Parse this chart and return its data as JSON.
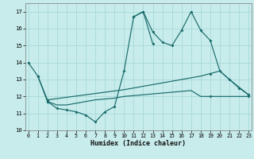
{
  "xlabel": "Humidex (Indice chaleur)",
  "bg_color": "#c8ecec",
  "line_color": "#1a6b6b",
  "grid_color": "#a8d8d8",
  "xlim": [
    -0.3,
    23.3
  ],
  "ylim": [
    10,
    17.5
  ],
  "xtick_vals": [
    0,
    1,
    2,
    3,
    4,
    5,
    6,
    7,
    8,
    9,
    10,
    11,
    12,
    13,
    14,
    15,
    16,
    17,
    18,
    19,
    20,
    21,
    22,
    23
  ],
  "ytick_vals": [
    10,
    11,
    12,
    13,
    14,
    15,
    16,
    17
  ],
  "line1_x": [
    0,
    1,
    2,
    3,
    4,
    5,
    6,
    7,
    8,
    9,
    10,
    11,
    12,
    13
  ],
  "line1_y": [
    14.0,
    13.2,
    11.7,
    11.3,
    11.2,
    11.1,
    10.9,
    10.5,
    11.1,
    11.4,
    13.5,
    16.7,
    17.0,
    15.1
  ],
  "line2_x": [
    11,
    12,
    13,
    14,
    15,
    16,
    17,
    18,
    19,
    20,
    21,
    22,
    23
  ],
  "line2_y": [
    16.7,
    17.0,
    15.8,
    15.2,
    15.0,
    15.9,
    17.0,
    15.9,
    15.3,
    13.5,
    13.0,
    12.5,
    12.1
  ],
  "line3_x": [
    1,
    2,
    10,
    11,
    12,
    13,
    14,
    15,
    16,
    17,
    18,
    19,
    20,
    21,
    22,
    23
  ],
  "line3_y": [
    13.2,
    11.8,
    12.4,
    12.5,
    12.6,
    12.7,
    12.8,
    12.9,
    13.0,
    13.1,
    13.2,
    13.35,
    13.5,
    13.0,
    12.55,
    12.1
  ],
  "line4_x": [
    2,
    3,
    4,
    5,
    6,
    7,
    8,
    9,
    10,
    11,
    12,
    13,
    14,
    15,
    16,
    17,
    18,
    19,
    20,
    21,
    22,
    23
  ],
  "line4_y": [
    11.7,
    11.5,
    11.5,
    11.6,
    11.7,
    11.8,
    11.85,
    11.9,
    12.0,
    12.05,
    12.1,
    12.15,
    12.2,
    12.25,
    12.3,
    12.35,
    12.0,
    12.0,
    12.0,
    12.0,
    12.0,
    12.0
  ]
}
